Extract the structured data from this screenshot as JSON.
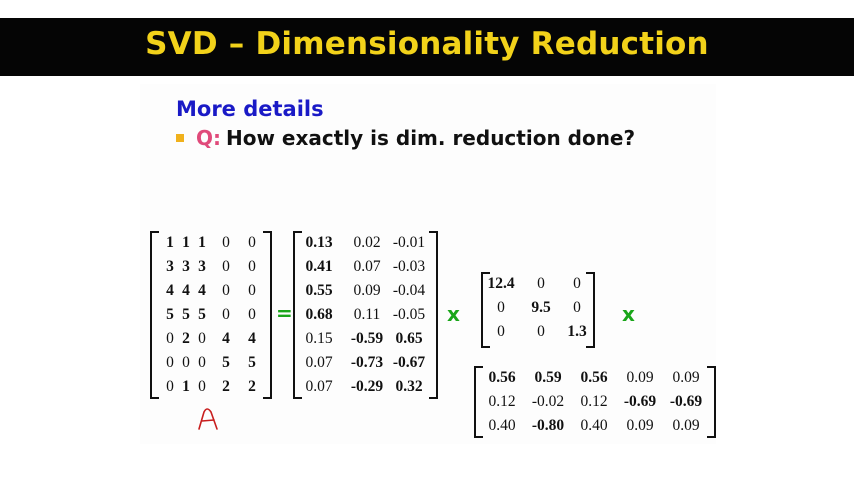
{
  "title": "SVD – Dimensionality Reduction",
  "heading": "More details",
  "bullet": {
    "label": "Q:",
    "text": "How exactly is dim. reduction done?"
  },
  "operators": {
    "equals": "=",
    "times1": "x",
    "times2": "x"
  },
  "handwritten_label": "A",
  "matrix_a": [
    [
      {
        "v": "1",
        "b": true
      },
      {
        "v": "1",
        "b": true
      },
      {
        "v": "1",
        "b": true
      },
      {
        "v": "0",
        "b": false
      },
      {
        "v": "0",
        "b": false
      }
    ],
    [
      {
        "v": "3",
        "b": true
      },
      {
        "v": "3",
        "b": true
      },
      {
        "v": "3",
        "b": true
      },
      {
        "v": "0",
        "b": false
      },
      {
        "v": "0",
        "b": false
      }
    ],
    [
      {
        "v": "4",
        "b": true
      },
      {
        "v": "4",
        "b": true
      },
      {
        "v": "4",
        "b": true
      },
      {
        "v": "0",
        "b": false
      },
      {
        "v": "0",
        "b": false
      }
    ],
    [
      {
        "v": "5",
        "b": true
      },
      {
        "v": "5",
        "b": true
      },
      {
        "v": "5",
        "b": true
      },
      {
        "v": "0",
        "b": false
      },
      {
        "v": "0",
        "b": false
      }
    ],
    [
      {
        "v": "0",
        "b": false
      },
      {
        "v": "2",
        "b": true
      },
      {
        "v": "0",
        "b": false
      },
      {
        "v": "4",
        "b": true
      },
      {
        "v": "4",
        "b": true
      }
    ],
    [
      {
        "v": "0",
        "b": false
      },
      {
        "v": "0",
        "b": false
      },
      {
        "v": "0",
        "b": false
      },
      {
        "v": "5",
        "b": true
      },
      {
        "v": "5",
        "b": true
      }
    ],
    [
      {
        "v": "0",
        "b": false
      },
      {
        "v": "1",
        "b": true
      },
      {
        "v": "0",
        "b": false
      },
      {
        "v": "2",
        "b": true
      },
      {
        "v": "2",
        "b": true
      }
    ]
  ],
  "matrix_u": [
    [
      {
        "v": "0.13",
        "b": true
      },
      {
        "v": "0.02",
        "b": false
      },
      {
        "v": "-0.01",
        "b": false
      }
    ],
    [
      {
        "v": "0.41",
        "b": true
      },
      {
        "v": "0.07",
        "b": false
      },
      {
        "v": "-0.03",
        "b": false
      }
    ],
    [
      {
        "v": "0.55",
        "b": true
      },
      {
        "v": "0.09",
        "b": false
      },
      {
        "v": "-0.04",
        "b": false
      }
    ],
    [
      {
        "v": "0.68",
        "b": true
      },
      {
        "v": "0.11",
        "b": false
      },
      {
        "v": "-0.05",
        "b": false
      }
    ],
    [
      {
        "v": "0.15",
        "b": false
      },
      {
        "v": "-0.59",
        "b": true
      },
      {
        "v": "0.65",
        "b": true
      }
    ],
    [
      {
        "v": "0.07",
        "b": false
      },
      {
        "v": "-0.73",
        "b": true
      },
      {
        "v": "-0.67",
        "b": true
      }
    ],
    [
      {
        "v": "0.07",
        "b": false
      },
      {
        "v": "-0.29",
        "b": true
      },
      {
        "v": "0.32",
        "b": true
      }
    ]
  ],
  "matrix_s": [
    [
      {
        "v": "12.4",
        "b": true
      },
      {
        "v": "0",
        "b": false
      },
      {
        "v": "0",
        "b": false
      }
    ],
    [
      {
        "v": "0",
        "b": false
      },
      {
        "v": "9.5",
        "b": true
      },
      {
        "v": "0",
        "b": false
      }
    ],
    [
      {
        "v": "0",
        "b": false
      },
      {
        "v": "0",
        "b": false
      },
      {
        "v": "1.3",
        "b": true
      }
    ]
  ],
  "matrix_v": [
    [
      {
        "v": "0.56",
        "b": true
      },
      {
        "v": "0.59",
        "b": true
      },
      {
        "v": "0.56",
        "b": true
      },
      {
        "v": "0.09",
        "b": false
      },
      {
        "v": "0.09",
        "b": false
      }
    ],
    [
      {
        "v": "0.12",
        "b": false
      },
      {
        "v": "-0.02",
        "b": false
      },
      {
        "v": "0.12",
        "b": false
      },
      {
        "v": "-0.69",
        "b": true
      },
      {
        "v": "-0.69",
        "b": true
      }
    ],
    [
      {
        "v": "0.40",
        "b": false
      },
      {
        "v": "-0.80",
        "b": true
      },
      {
        "v": "0.40",
        "b": false
      },
      {
        "v": "0.09",
        "b": false
      },
      {
        "v": "0.09",
        "b": false
      }
    ]
  ]
}
